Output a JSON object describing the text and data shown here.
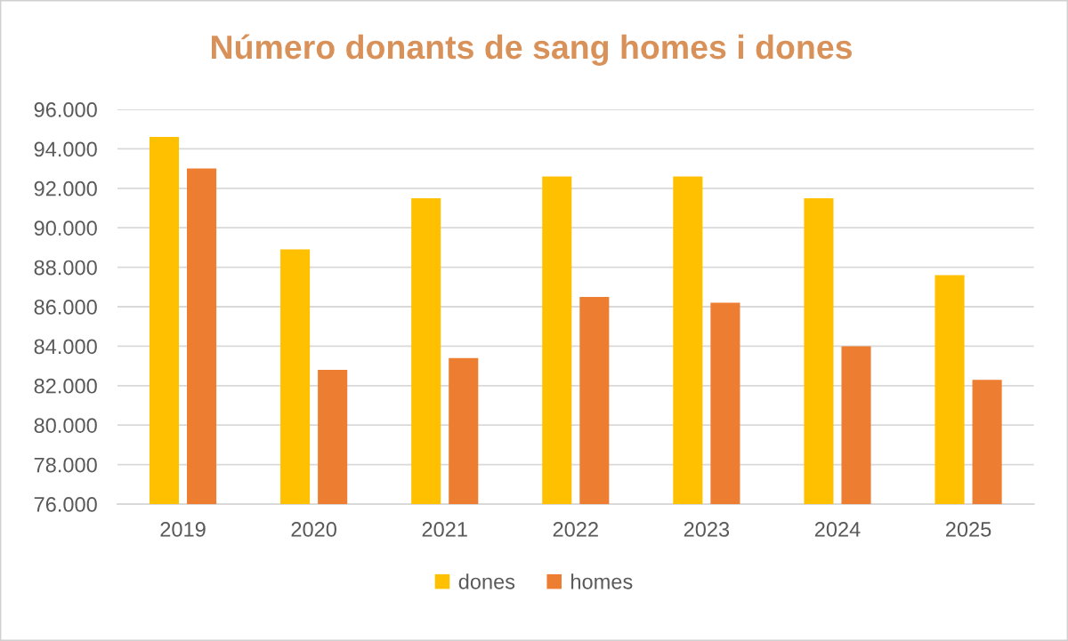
{
  "chart_data": {
    "type": "bar",
    "title": "Número donants de sang homes i dones",
    "categories": [
      "2019",
      "2020",
      "2021",
      "2022",
      "2023",
      "2024",
      "2025"
    ],
    "series": [
      {
        "name": "dones",
        "color": "#ffc000",
        "values": [
          94600,
          88900,
          91500,
          92600,
          92600,
          91500,
          87600
        ]
      },
      {
        "name": "homes",
        "color": "#ed7d31",
        "values": [
          93000,
          82800,
          83400,
          86500,
          86200,
          84000,
          82300
        ]
      }
    ],
    "ylim": [
      76000,
      96000
    ],
    "yticks": [
      {
        "value": 76000,
        "label": "76.000"
      },
      {
        "value": 78000,
        "label": "78.000"
      },
      {
        "value": 80000,
        "label": "80.000"
      },
      {
        "value": 82000,
        "label": "82.000"
      },
      {
        "value": 84000,
        "label": "84.000"
      },
      {
        "value": 86000,
        "label": "86.000"
      },
      {
        "value": 88000,
        "label": "88.000"
      },
      {
        "value": 90000,
        "label": "90.000"
      },
      {
        "value": 92000,
        "label": "92.000"
      },
      {
        "value": 94000,
        "label": "94.000"
      },
      {
        "value": 96000,
        "label": "96.000"
      }
    ],
    "grid": "y",
    "legend": "bottom"
  }
}
